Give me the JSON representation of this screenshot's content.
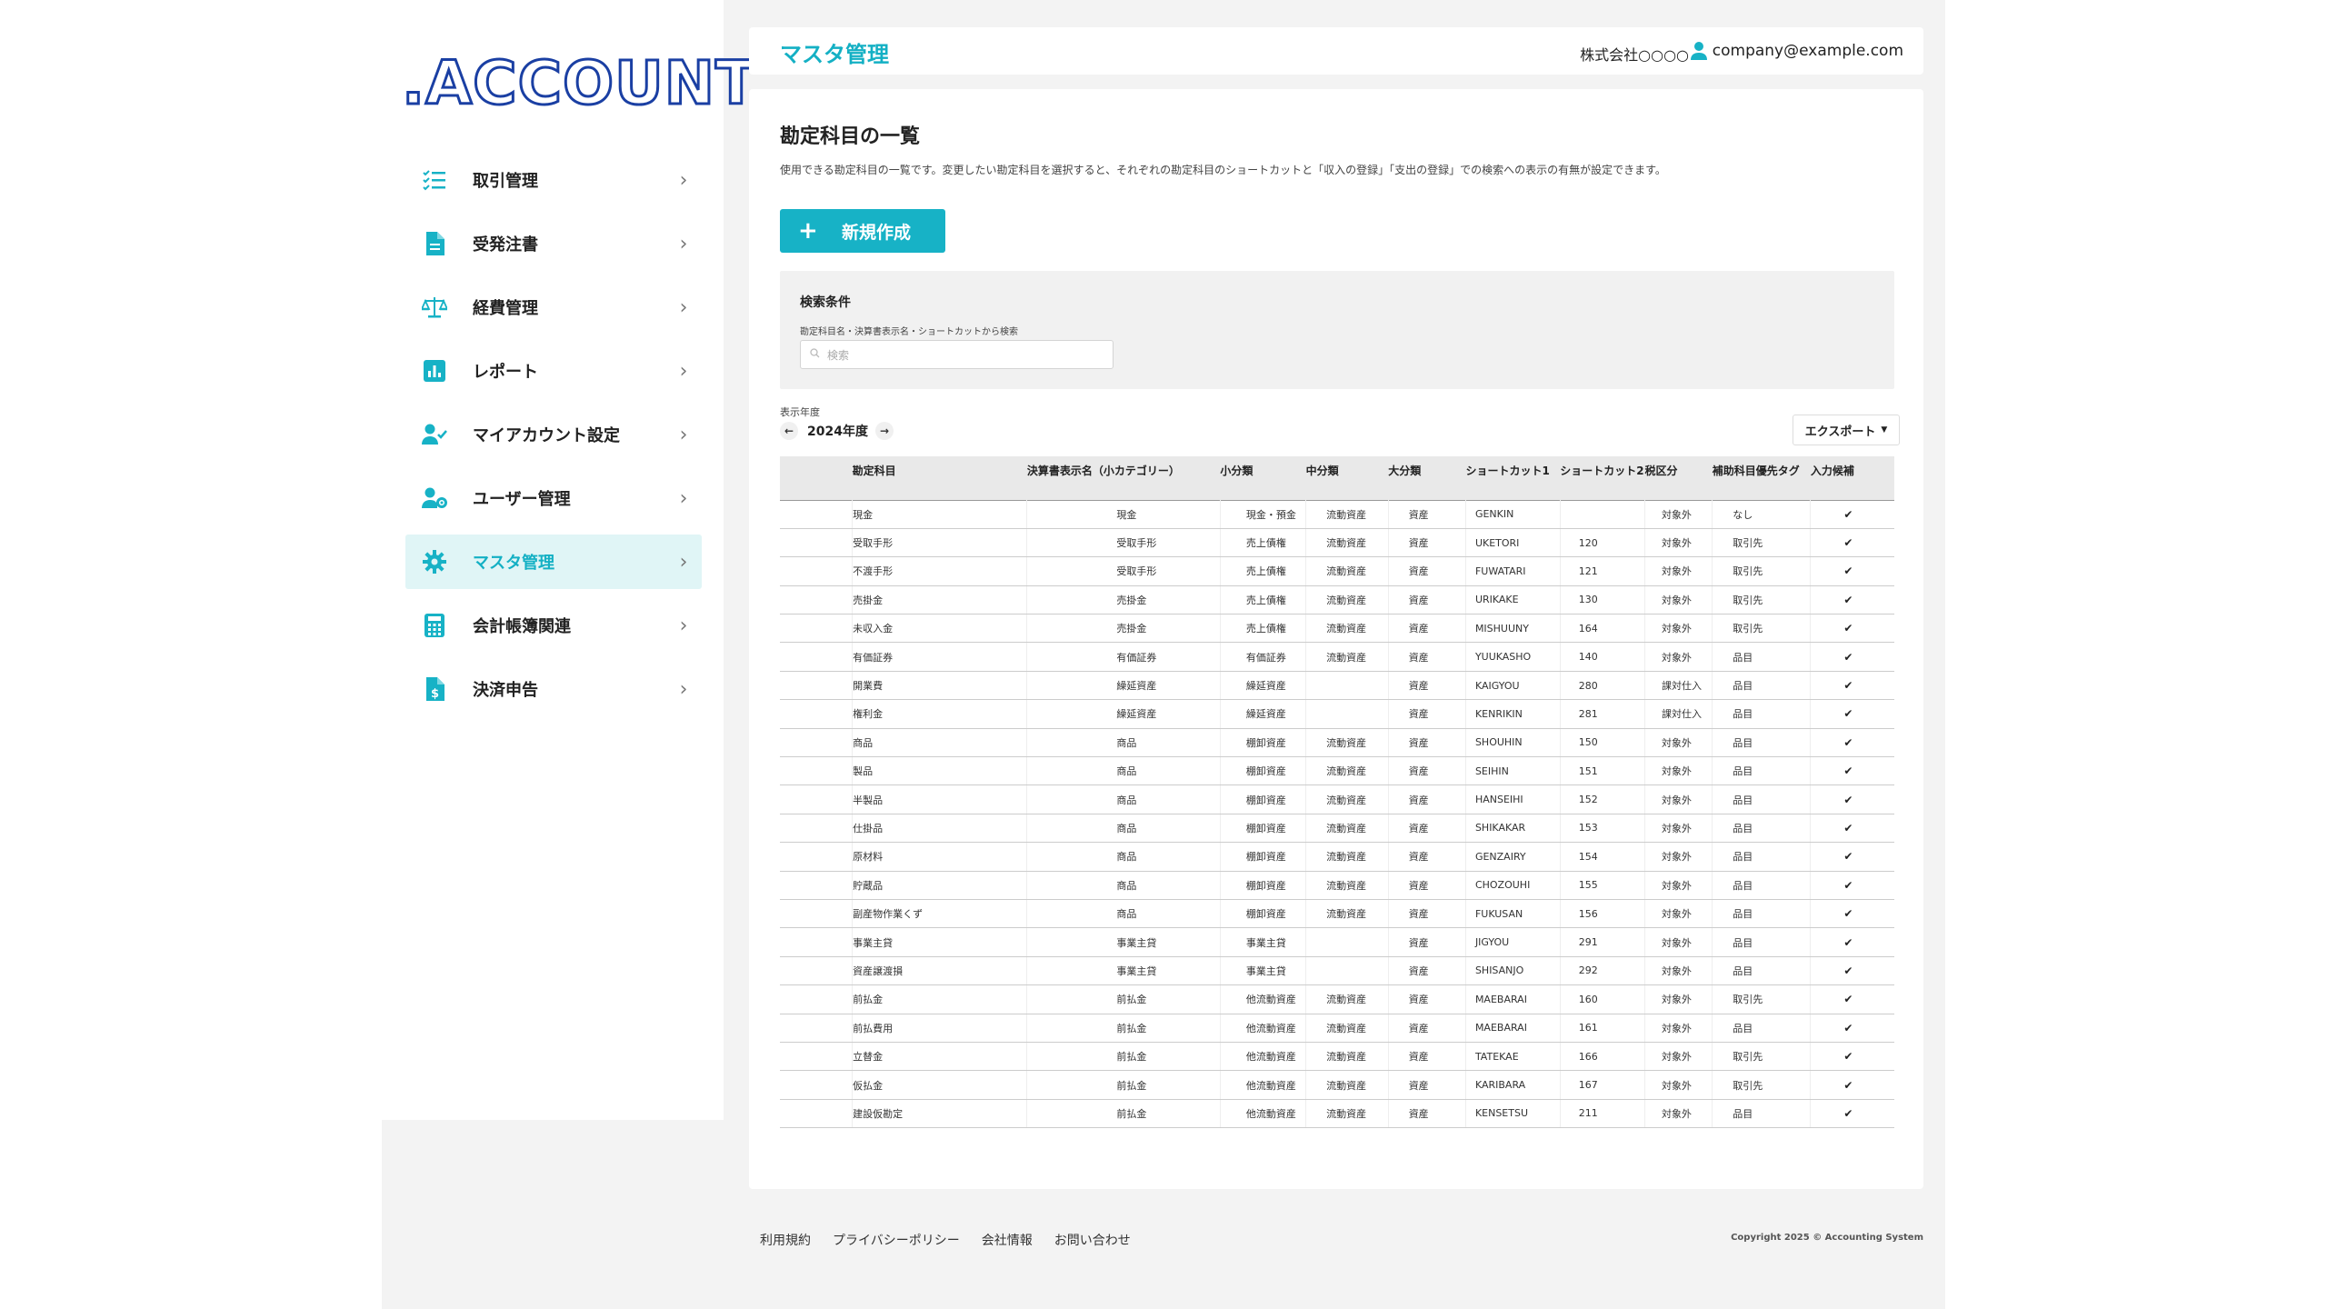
{
  "logo": ".ACCOUNT",
  "sidebar": {
    "items": [
      {
        "label": "取引管理",
        "icon": "list-check-icon",
        "active": false
      },
      {
        "label": "受発注書",
        "icon": "document-icon",
        "active": false
      },
      {
        "label": "経費管理",
        "icon": "scale-icon",
        "active": false
      },
      {
        "label": "レポート",
        "icon": "bar-chart-icon",
        "active": false
      },
      {
        "label": "マイアカウント設定",
        "icon": "user-check-icon",
        "active": false
      },
      {
        "label": "ユーザー管理",
        "icon": "user-gear-icon",
        "active": false
      },
      {
        "label": "マスタ管理",
        "icon": "gear-icon",
        "active": true
      },
      {
        "label": "会計帳簿関連",
        "icon": "calculator-icon",
        "active": false
      },
      {
        "label": "決済申告",
        "icon": "receipt-dollar-icon",
        "active": false
      }
    ]
  },
  "header": {
    "title": "マスタ管理",
    "company": "株式会社○○○○",
    "email": "company@example.com"
  },
  "main": {
    "title": "勘定科目の一覧",
    "description": "使用できる勘定科目の一覧です。変更したい勘定科目を選択すると、それぞれの勘定科目のショートカットと「収入の登録」「支出の登録」での検索への表示の有無が設定できます。",
    "new_button": "新規作成",
    "search": {
      "title": "検索条件",
      "sublabel": "勘定科目名・決算書表示名・ショートカットから検索",
      "placeholder": "検索"
    },
    "year_label": "表示年度",
    "year_value": "2024年度",
    "export_label": "エクスポート",
    "columns": [
      "勘定科目",
      "決算書表示名（小カテゴリー）",
      "小分類",
      "中分類",
      "大分類",
      "ショートカット1",
      "ショートカット2",
      "税区分",
      "補助科目優先タグ",
      "入力候補"
    ],
    "rows": [
      [
        "現金",
        "現金",
        "現金・預金",
        "流動資産",
        "資産",
        "GENKIN",
        "",
        "対象外",
        "なし",
        "✔"
      ],
      [
        "受取手形",
        "受取手形",
        "売上債権",
        "流動資産",
        "資産",
        "UKETORI",
        "120",
        "対象外",
        "取引先",
        "✔"
      ],
      [
        "不渡手形",
        "受取手形",
        "売上債権",
        "流動資産",
        "資産",
        "FUWATARI",
        "121",
        "対象外",
        "取引先",
        "✔"
      ],
      [
        "売掛金",
        "売掛金",
        "売上債権",
        "流動資産",
        "資産",
        "URIKAKE",
        "130",
        "対象外",
        "取引先",
        "✔"
      ],
      [
        "未収入金",
        "売掛金",
        "売上債権",
        "流動資産",
        "資産",
        "MISHUUNY",
        "164",
        "対象外",
        "取引先",
        "✔"
      ],
      [
        "有価証券",
        "有価証券",
        "有価証券",
        "流動資産",
        "資産",
        "YUUKASHO",
        "140",
        "対象外",
        "品目",
        "✔"
      ],
      [
        "開業費",
        "繰延資産",
        "繰延資産",
        "",
        "資産",
        "KAIGYOU",
        "280",
        "課対仕入",
        "品目",
        "✔"
      ],
      [
        "権利金",
        "繰延資産",
        "繰延資産",
        "",
        "資産",
        "KENRIKIN",
        "281",
        "課対仕入",
        "品目",
        "✔"
      ],
      [
        "商品",
        "商品",
        "棚卸資産",
        "流動資産",
        "資産",
        "SHOUHIN",
        "150",
        "対象外",
        "品目",
        "✔"
      ],
      [
        "製品",
        "商品",
        "棚卸資産",
        "流動資産",
        "資産",
        "SEIHIN",
        "151",
        "対象外",
        "品目",
        "✔"
      ],
      [
        "半製品",
        "商品",
        "棚卸資産",
        "流動資産",
        "資産",
        "HANSEIHI",
        "152",
        "対象外",
        "品目",
        "✔"
      ],
      [
        "仕掛品",
        "商品",
        "棚卸資産",
        "流動資産",
        "資産",
        "SHIKAKAR",
        "153",
        "対象外",
        "品目",
        "✔"
      ],
      [
        "原材料",
        "商品",
        "棚卸資産",
        "流動資産",
        "資産",
        "GENZAIRY",
        "154",
        "対象外",
        "品目",
        "✔"
      ],
      [
        "貯蔵品",
        "商品",
        "棚卸資産",
        "流動資産",
        "資産",
        "CHOZOUHI",
        "155",
        "対象外",
        "品目",
        "✔"
      ],
      [
        "副産物作業くず",
        "商品",
        "棚卸資産",
        "流動資産",
        "資産",
        "FUKUSAN",
        "156",
        "対象外",
        "品目",
        "✔"
      ],
      [
        "事業主貸",
        "事業主貸",
        "事業主貸",
        "",
        "資産",
        "JIGYOU",
        "291",
        "対象外",
        "品目",
        "✔"
      ],
      [
        "資産譲渡損",
        "事業主貸",
        "事業主貸",
        "",
        "資産",
        "SHISANJO",
        "292",
        "対象外",
        "品目",
        "✔"
      ],
      [
        "前払金",
        "前払金",
        "他流動資産",
        "流動資産",
        "資産",
        "MAEBARAI",
        "160",
        "対象外",
        "取引先",
        "✔"
      ],
      [
        "前払費用",
        "前払金",
        "他流動資産",
        "流動資産",
        "資産",
        "MAEBARAI",
        "161",
        "対象外",
        "品目",
        "✔"
      ],
      [
        "立替金",
        "前払金",
        "他流動資産",
        "流動資産",
        "資産",
        "TATEKAE",
        "166",
        "対象外",
        "取引先",
        "✔"
      ],
      [
        "仮払金",
        "前払金",
        "他流動資産",
        "流動資産",
        "資産",
        "KARIBARA",
        "167",
        "対象外",
        "取引先",
        "✔"
      ],
      [
        "建設仮勘定",
        "前払金",
        "他流動資産",
        "流動資産",
        "資産",
        "KENSETSU",
        "211",
        "対象外",
        "品目",
        "✔"
      ]
    ]
  },
  "footer": {
    "links": [
      "利用規約",
      "プライバシーポリシー",
      "会社情報",
      "お問い合わせ"
    ],
    "copyright": "Copyright 2025 © Accounting System"
  },
  "colors": {
    "accent": "#17b2c6",
    "logo": "#1a3fa3",
    "active_bg": "#e0f5f6"
  }
}
